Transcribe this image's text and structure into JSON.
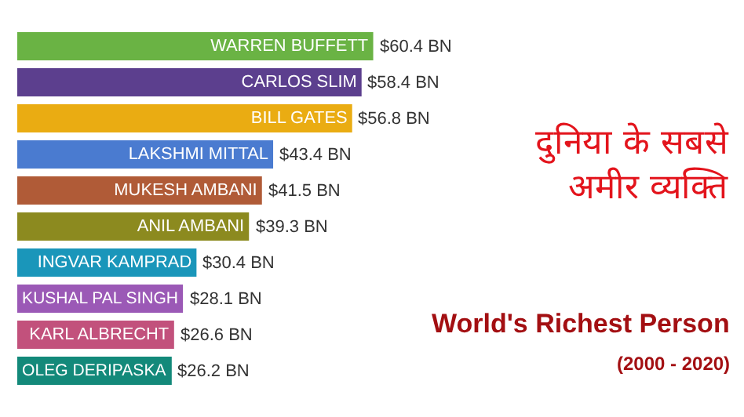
{
  "chart_data": {
    "type": "bar",
    "orientation": "horizontal",
    "title": "दुनिया के सबसे\nअमीर व्यक्ति",
    "subtitle": "World's Richest Person",
    "annotations": [
      "(2000 - 2020)"
    ],
    "categories": [
      "WARREN BUFFETT",
      "CARLOS SLIM",
      "BILL GATES",
      "LAKSHMI MITTAL",
      "MUKESH AMBANI",
      "ANIL AMBANI",
      "INGVAR KAMPRAD",
      "KUSHAL PAL SINGH",
      "KARL ALBRECHT",
      "OLEG DERIPASKA"
    ],
    "values": [
      60.4,
      58.4,
      56.8,
      43.4,
      41.5,
      39.3,
      30.4,
      28.1,
      26.6,
      26.2
    ],
    "value_labels": [
      "$60.4 BN",
      "$58.4 BN",
      "$56.8 BN",
      "$43.4 BN",
      "$41.5 BN",
      "$39.3 BN",
      "$30.4 BN",
      "$28.1 BN",
      "$26.6 BN",
      "$26.2 BN"
    ],
    "colors": [
      "#6ab344",
      "#5c3f8e",
      "#eaac12",
      "#4a7bd0",
      "#b05b37",
      "#8c8a1f",
      "#1a96ba",
      "#9b59b6",
      "#c2517c",
      "#13897a"
    ],
    "legend": false
  }
}
